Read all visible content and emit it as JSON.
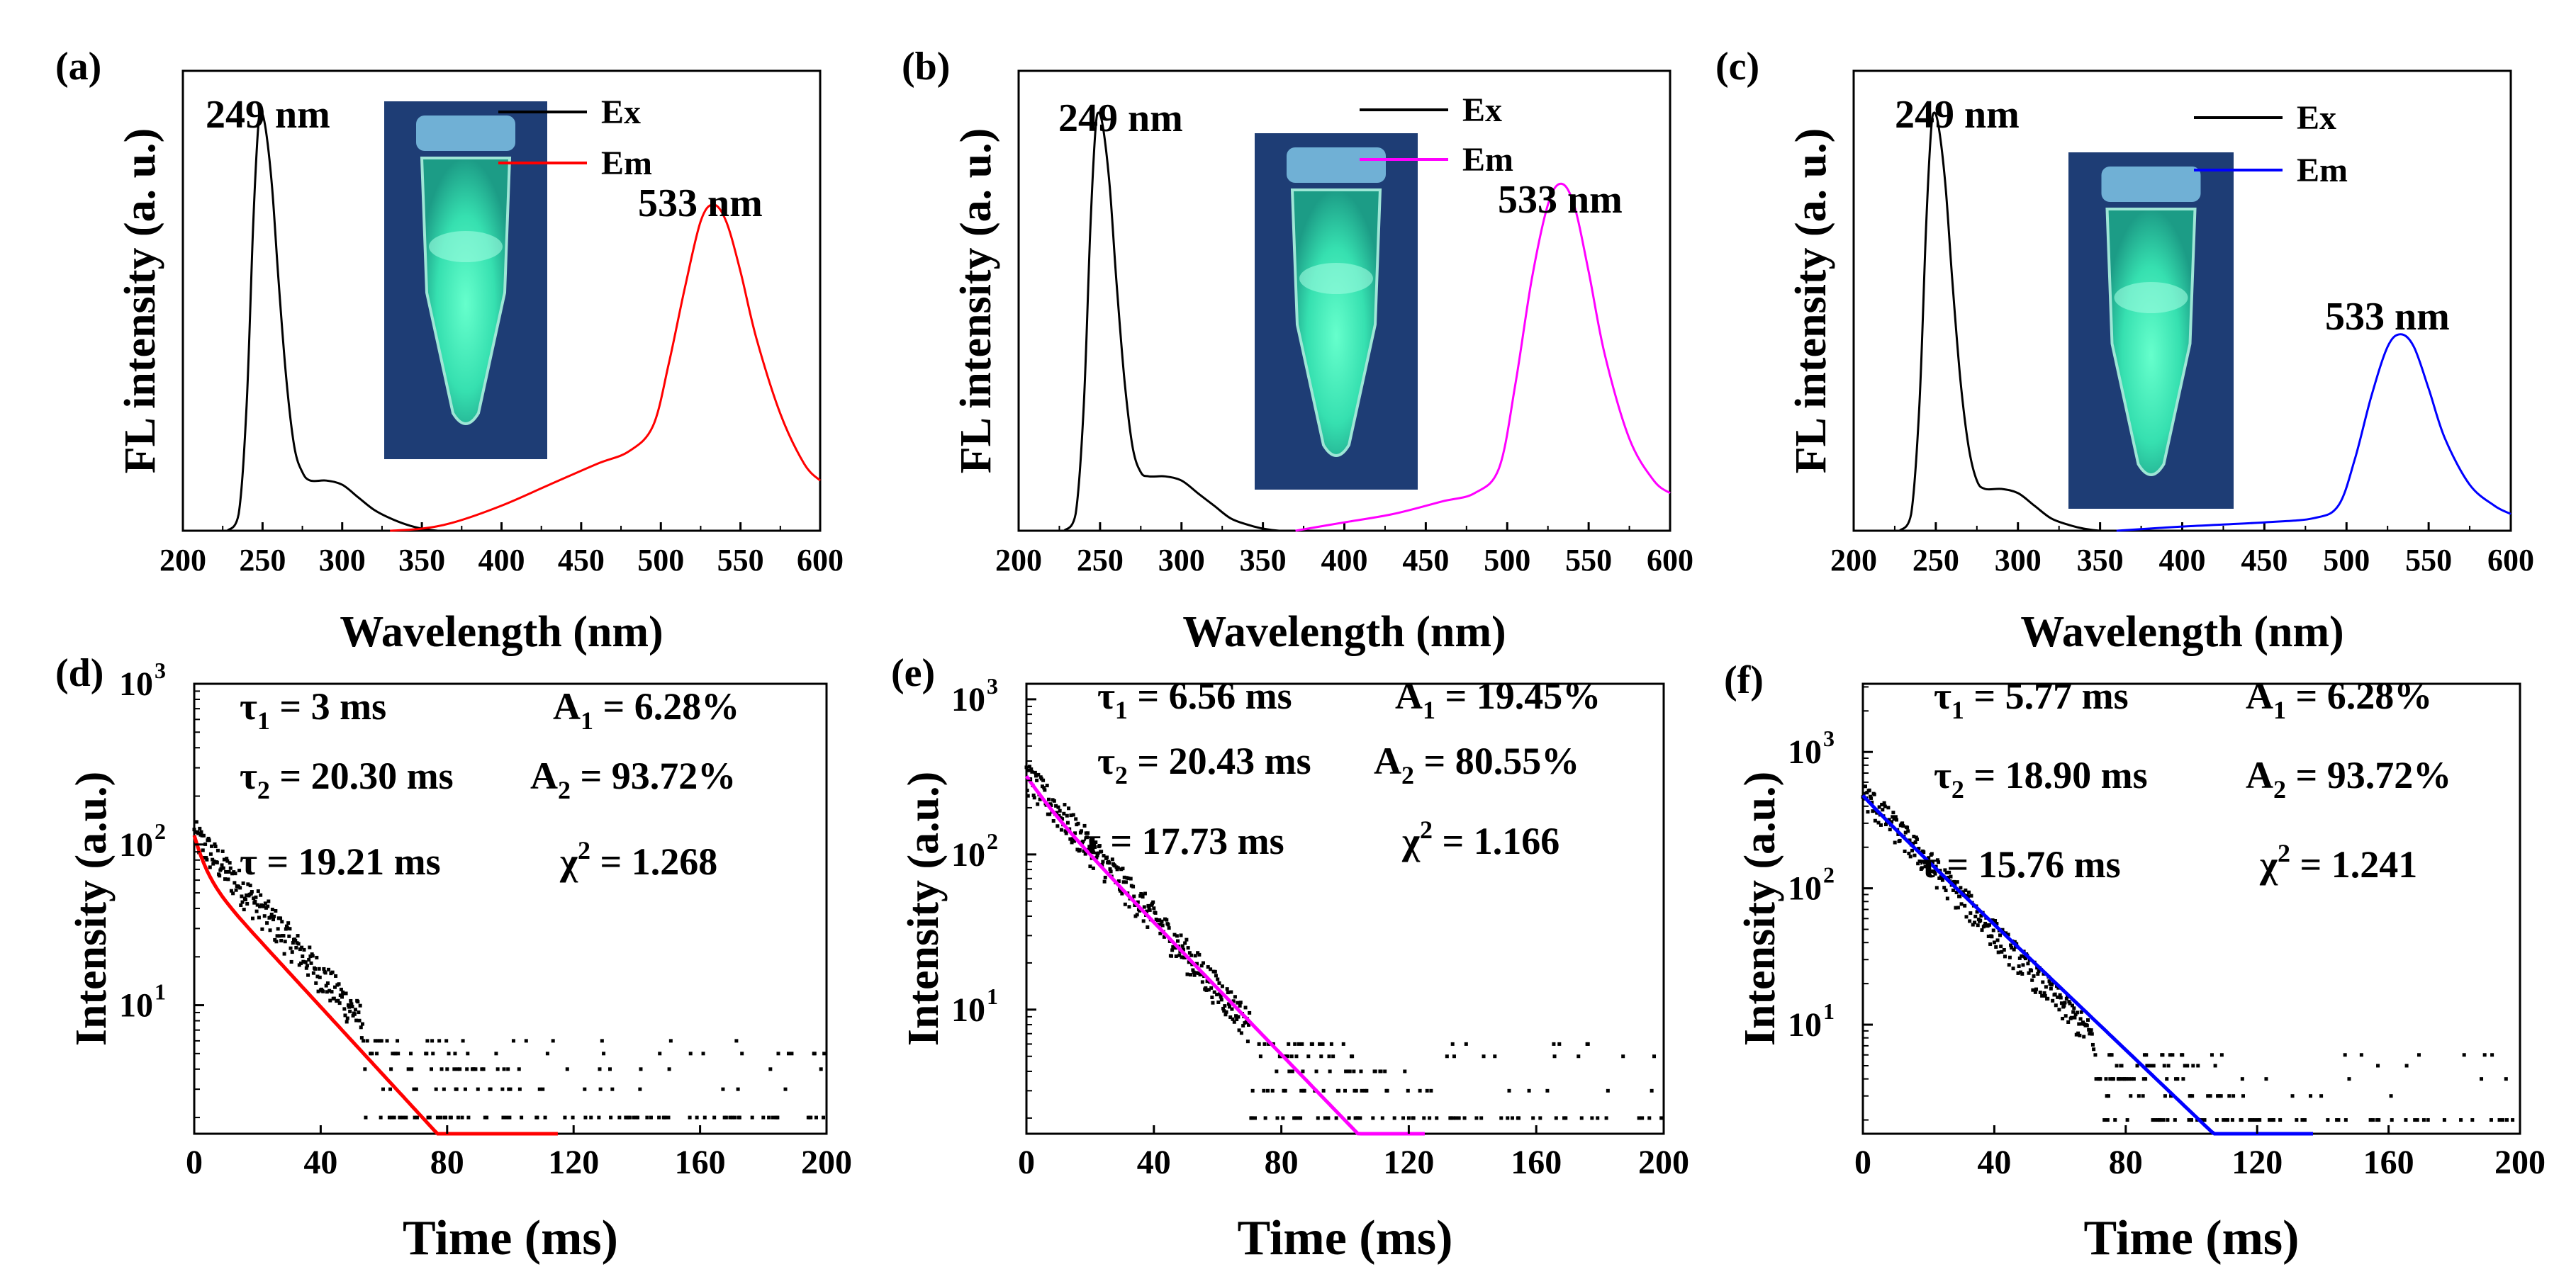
{
  "chart_data": [
    {
      "panel": "(a)",
      "type": "line",
      "xlabel": "Wavelength (nm)",
      "ylabel": "FL intensity (a. u.)",
      "xlim": [
        200,
        600
      ],
      "ylim": [
        0,
        1.1
      ],
      "x_ticks": [
        "200",
        "250",
        "300",
        "350",
        "400",
        "450",
        "500",
        "550",
        "600"
      ],
      "legend": {
        "placement": "top-right",
        "entries": [
          "Ex",
          "Em"
        ]
      },
      "annotations": [
        "249 nm",
        "533 nm"
      ],
      "inset": "photo of glowing sample tube",
      "series": [
        {
          "name": "Ex",
          "color": "#000000",
          "x": [
            228,
            235,
            240,
            244,
            247,
            249,
            252,
            256,
            260,
            265,
            270,
            275,
            280,
            290,
            300,
            310,
            320,
            330,
            340,
            350,
            360,
            370
          ],
          "y": [
            0,
            0.04,
            0.3,
            0.72,
            0.95,
            1.0,
            0.96,
            0.82,
            0.6,
            0.36,
            0.2,
            0.14,
            0.12,
            0.12,
            0.11,
            0.08,
            0.05,
            0.03,
            0.015,
            0.005,
            0.0,
            0.0
          ]
        },
        {
          "name": "Em",
          "color": "#ff0000",
          "x": [
            330,
            350,
            370,
            400,
            430,
            460,
            480,
            495,
            505,
            515,
            525,
            533,
            541,
            550,
            560,
            575,
            590,
            600
          ],
          "y": [
            0,
            0.005,
            0.02,
            0.06,
            0.11,
            0.16,
            0.19,
            0.25,
            0.4,
            0.58,
            0.74,
            0.78,
            0.74,
            0.62,
            0.46,
            0.28,
            0.16,
            0.12
          ]
        }
      ]
    },
    {
      "panel": "(b)",
      "type": "line",
      "xlabel": "Wavelength (nm)",
      "ylabel": "FL intensity (a. u.)",
      "xlim": [
        200,
        600
      ],
      "ylim": [
        0,
        1.1
      ],
      "x_ticks": [
        "200",
        "250",
        "300",
        "350",
        "400",
        "450",
        "500",
        "550",
        "600"
      ],
      "legend": {
        "placement": "top-right",
        "entries": [
          "Ex",
          "Em"
        ]
      },
      "annotations": [
        "249 nm",
        "533 nm"
      ],
      "inset": "photo of glowing sample tube",
      "series": [
        {
          "name": "Ex",
          "color": "#000000",
          "x": [
            228,
            235,
            240,
            244,
            247,
            249,
            252,
            256,
            260,
            265,
            270,
            275,
            280,
            290,
            300,
            310,
            320,
            330,
            340,
            350,
            360,
            370
          ],
          "y": [
            0,
            0.04,
            0.3,
            0.72,
            0.95,
            1.0,
            0.96,
            0.82,
            0.6,
            0.36,
            0.2,
            0.14,
            0.13,
            0.13,
            0.12,
            0.09,
            0.06,
            0.03,
            0.015,
            0.005,
            0.0,
            0.0
          ]
        },
        {
          "name": "Em",
          "color": "#ff00ff",
          "x": [
            370,
            400,
            430,
            460,
            480,
            495,
            505,
            515,
            525,
            533,
            541,
            550,
            560,
            575,
            590,
            600
          ],
          "y": [
            0,
            0.02,
            0.04,
            0.07,
            0.09,
            0.15,
            0.35,
            0.6,
            0.78,
            0.83,
            0.78,
            0.62,
            0.42,
            0.22,
            0.12,
            0.09
          ]
        }
      ]
    },
    {
      "panel": "(c)",
      "type": "line",
      "xlabel": "Wavelength (nm)",
      "ylabel": "FL intensity (a. u.)",
      "xlim": [
        200,
        600
      ],
      "ylim": [
        0,
        1.1
      ],
      "x_ticks": [
        "200",
        "250",
        "300",
        "350",
        "400",
        "450",
        "500",
        "550",
        "600"
      ],
      "legend": {
        "placement": "top-right",
        "entries": [
          "Ex",
          "Em"
        ]
      },
      "annotations": [
        "249 nm",
        "533 nm"
      ],
      "inset": "photo of glowing sample tube",
      "series": [
        {
          "name": "Ex",
          "color": "#000000",
          "x": [
            228,
            235,
            240,
            244,
            247,
            249,
            252,
            256,
            260,
            265,
            270,
            275,
            280,
            290,
            300,
            310,
            320,
            330,
            340,
            350,
            360
          ],
          "y": [
            0,
            0.04,
            0.3,
            0.72,
            0.95,
            1.0,
            0.96,
            0.82,
            0.6,
            0.36,
            0.2,
            0.12,
            0.1,
            0.1,
            0.09,
            0.06,
            0.03,
            0.015,
            0.005,
            0.0,
            0.0
          ]
        },
        {
          "name": "Em",
          "color": "#0000ff",
          "x": [
            360,
            400,
            450,
            480,
            495,
            505,
            515,
            525,
            533,
            541,
            550,
            560,
            575,
            590,
            600
          ],
          "y": [
            0,
            0.01,
            0.02,
            0.03,
            0.06,
            0.17,
            0.32,
            0.44,
            0.47,
            0.44,
            0.34,
            0.22,
            0.11,
            0.06,
            0.04
          ]
        }
      ]
    },
    {
      "panel": "(d)",
      "type": "scatter",
      "xlabel": "Time (ms)",
      "ylabel": "Intensity (a.u.)",
      "xlim": [
        0,
        200
      ],
      "ylim_log10": [
        0.2,
        3.0
      ],
      "x_ticks": [
        "0",
        "40",
        "80",
        "120",
        "160",
        "200"
      ],
      "y_ticks": [
        "10",
        "10",
        "10"
      ],
      "y_tick_exponents": [
        "1",
        "2",
        "3"
      ],
      "fit": {
        "color": "#ff0000",
        "A1": 44,
        "tau1": 3,
        "A2": 70,
        "tau2": 20.3,
        "x_end": 115
      },
      "decay_data": {
        "initial_intensity": 115,
        "tau_ms": 20,
        "floor_levels": [
          2,
          3,
          4,
          5,
          6
        ],
        "noise_amplitude": 1.5
      },
      "fit_results": [
        {
          "main": "τ",
          "sub": "1",
          "rest": " = 3 ms"
        },
        {
          "main": "A",
          "sub": "1",
          "rest": " = 6.28%"
        },
        {
          "main": "τ",
          "sub": "2",
          "rest": " = 20.30 ms"
        },
        {
          "main": "A",
          "sub": "2",
          "rest": " = 93.72%"
        },
        {
          "main": "τ",
          "sub": "",
          "rest": " = 19.21 ms"
        },
        {
          "main": "χ",
          "sup": "2",
          "rest": " = 1.268"
        }
      ]
    },
    {
      "panel": "(e)",
      "type": "scatter",
      "xlabel": "Time (ms)",
      "ylabel": "Intensity (a.u.)",
      "xlim": [
        0,
        200
      ],
      "ylim_log10": [
        0.2,
        3.1
      ],
      "x_ticks": [
        "0",
        "40",
        "80",
        "120",
        "160",
        "200"
      ],
      "y_ticks": [
        "10",
        "10",
        "10"
      ],
      "y_tick_exponents": [
        "1",
        "2",
        "3"
      ],
      "fit": {
        "color": "#ff00ff",
        "A1": 62,
        "tau1": 6.56,
        "A2": 258,
        "tau2": 20.43,
        "x_end": 125
      },
      "decay_data": {
        "initial_intensity": 320,
        "tau_ms": 19,
        "floor_levels": [
          2,
          3,
          4,
          5,
          6
        ],
        "noise_amplitude": 1.5
      },
      "fit_results": [
        {
          "main": "τ",
          "sub": "1",
          "rest": " = 6.56 ms"
        },
        {
          "main": "A",
          "sub": "1",
          "rest": " = 19.45%"
        },
        {
          "main": "τ",
          "sub": "2",
          "rest": " = 20.43 ms"
        },
        {
          "main": "A",
          "sub": "2",
          "rest": " = 80.55%"
        },
        {
          "main": "τ",
          "sub": "",
          "rest": " = 17.73 ms"
        },
        {
          "main": "χ",
          "sup": "2",
          "rest": " = 1.166"
        }
      ]
    },
    {
      "panel": "(f)",
      "type": "scatter",
      "xlabel": "Time (ms)",
      "ylabel": "Intensity (a.u.)",
      "xlim": [
        0,
        200
      ],
      "ylim_log10": [
        0.2,
        3.5
      ],
      "x_ticks": [
        "0",
        "40",
        "80",
        "120",
        "160",
        "200"
      ],
      "y_ticks": [
        "10",
        "10",
        "10"
      ],
      "y_tick_exponents": [
        "1",
        "2",
        "3"
      ],
      "fit": {
        "color": "#0000ff",
        "A1": 30,
        "tau1": 5.77,
        "A2": 450,
        "tau2": 18.9,
        "x_end": 137
      },
      "decay_data": {
        "initial_intensity": 500,
        "tau_ms": 17,
        "floor_levels": [
          2,
          3,
          4,
          5,
          6
        ],
        "noise_amplitude": 1.5
      },
      "fit_results": [
        {
          "main": "τ",
          "sub": "1",
          "rest": " = 5.77 ms"
        },
        {
          "main": "A",
          "sub": "1",
          "rest": " = 6.28%"
        },
        {
          "main": "τ",
          "sub": "2",
          "rest": " = 18.90 ms"
        },
        {
          "main": "A",
          "sub": "2",
          "rest": " = 93.72%"
        },
        {
          "main": "τ",
          "sub": "",
          "rest": " = 15.76 ms"
        },
        {
          "main": "χ",
          "sup": "2",
          "rest": " = 1.241"
        }
      ]
    }
  ]
}
